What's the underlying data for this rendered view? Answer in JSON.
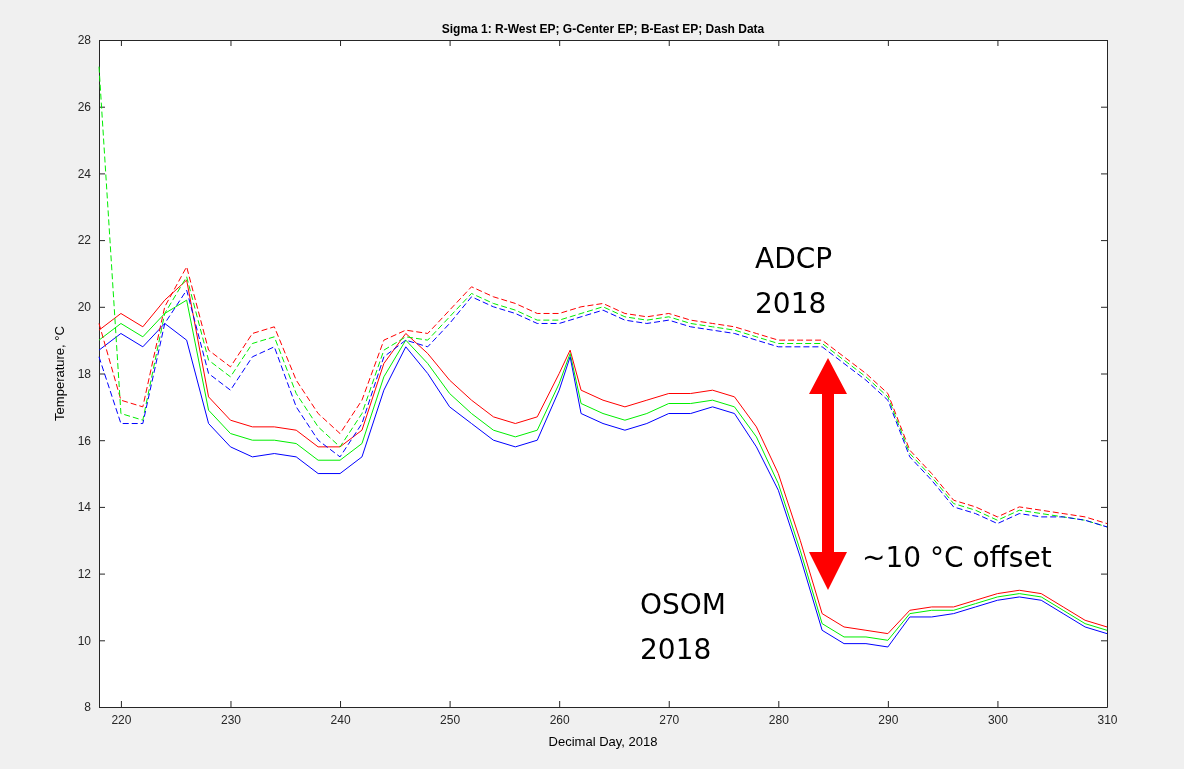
{
  "chart_data": {
    "type": "line",
    "title": "Sigma 1: R-West EP; G-Center EP; B-East EP; Dash Data",
    "xlabel": "Decimal Day, 2018",
    "ylabel": "Temperature, °C",
    "x": [
      218,
      220,
      222,
      224,
      226,
      228,
      230,
      232,
      234,
      236,
      238,
      240,
      242,
      244,
      246,
      248,
      250,
      252,
      254,
      256,
      258,
      260,
      261,
      262,
      264,
      266,
      268,
      270,
      272,
      274,
      276,
      278,
      280,
      282,
      284,
      286,
      288,
      290,
      292,
      294,
      296,
      298,
      300,
      302,
      304,
      306,
      308,
      310
    ],
    "xlim": [
      218,
      310
    ],
    "xticks": [
      220,
      230,
      240,
      250,
      260,
      270,
      280,
      290,
      300,
      310
    ],
    "ylim": [
      8,
      28
    ],
    "yticks": [
      8,
      10,
      12,
      14,
      16,
      18,
      20,
      22,
      24,
      26,
      28
    ],
    "grid": false,
    "series": [
      {
        "color": "#ff0000",
        "line_style": "solid",
        "values": [
          19.3,
          19.8,
          19.4,
          20.2,
          20.8,
          17.3,
          16.6,
          16.4,
          16.4,
          16.3,
          15.8,
          15.8,
          16.3,
          18.3,
          19.2,
          18.6,
          17.8,
          17.2,
          16.7,
          16.5,
          16.7,
          18.0,
          18.7,
          17.5,
          17.2,
          17.0,
          17.2,
          17.4,
          17.4,
          17.5,
          17.3,
          16.4,
          15.0,
          13.0,
          10.8,
          10.4,
          10.3,
          10.2,
          10.9,
          11.0,
          11.0,
          11.2,
          11.4,
          11.5,
          11.4,
          11.0,
          10.6,
          10.4
        ]
      },
      {
        "color": "#00ee00",
        "line_style": "solid",
        "values": [
          19.0,
          19.5,
          19.1,
          19.8,
          20.2,
          16.9,
          16.2,
          16.0,
          16.0,
          15.9,
          15.4,
          15.4,
          15.9,
          17.9,
          19.0,
          18.3,
          17.4,
          16.8,
          16.3,
          16.1,
          16.3,
          17.7,
          18.6,
          17.1,
          16.8,
          16.6,
          16.8,
          17.1,
          17.1,
          17.2,
          17.0,
          16.1,
          14.7,
          12.7,
          10.5,
          10.1,
          10.1,
          10.0,
          10.8,
          10.9,
          10.9,
          11.1,
          11.3,
          11.4,
          11.3,
          10.9,
          10.5,
          10.3
        ]
      },
      {
        "color": "#0000ff",
        "line_style": "solid",
        "values": [
          18.7,
          19.2,
          18.8,
          19.5,
          19.0,
          16.5,
          15.8,
          15.5,
          15.6,
          15.5,
          15.0,
          15.0,
          15.5,
          17.5,
          18.8,
          18.0,
          17.0,
          16.5,
          16.0,
          15.8,
          16.0,
          17.5,
          18.5,
          16.8,
          16.5,
          16.3,
          16.5,
          16.8,
          16.8,
          17.0,
          16.8,
          15.8,
          14.5,
          12.5,
          10.3,
          9.9,
          9.9,
          9.8,
          10.7,
          10.7,
          10.8,
          11.0,
          11.2,
          11.3,
          11.2,
          10.8,
          10.4,
          10.2
        ]
      },
      {
        "color": "#ff0000",
        "line_style": "dashed",
        "values": [
          19.5,
          17.2,
          17.0,
          20.0,
          21.2,
          18.7,
          18.2,
          19.2,
          19.4,
          17.8,
          16.8,
          16.2,
          17.2,
          19.0,
          19.3,
          19.2,
          19.9,
          20.6,
          20.3,
          20.1,
          19.8,
          19.8,
          19.9,
          20.0,
          20.1,
          19.8,
          19.7,
          19.8,
          19.6,
          19.5,
          19.4,
          19.2,
          19.0,
          19.0,
          19.0,
          18.5,
          18.0,
          17.4,
          15.7,
          15.0,
          14.2,
          14.0,
          13.7,
          14.0,
          13.9,
          13.8,
          13.7,
          13.5
        ]
      },
      {
        "color": "#00ee00",
        "line_style": "dashed",
        "values": [
          27.2,
          16.8,
          16.6,
          19.8,
          20.9,
          18.4,
          17.9,
          18.9,
          19.1,
          17.4,
          16.4,
          15.8,
          16.8,
          18.7,
          19.1,
          19.0,
          19.7,
          20.4,
          20.1,
          19.9,
          19.6,
          19.6,
          19.7,
          19.8,
          20.0,
          19.7,
          19.6,
          19.7,
          19.5,
          19.4,
          19.3,
          19.1,
          18.9,
          18.9,
          18.9,
          18.4,
          17.9,
          17.3,
          15.6,
          14.9,
          14.1,
          13.9,
          13.6,
          13.9,
          13.8,
          13.7,
          13.6,
          13.4
        ]
      },
      {
        "color": "#0000ff",
        "line_style": "dashed",
        "values": [
          18.5,
          16.5,
          16.5,
          19.5,
          20.5,
          18.0,
          17.5,
          18.5,
          18.8,
          17.0,
          16.0,
          15.5,
          16.5,
          18.5,
          19.0,
          18.8,
          19.5,
          20.3,
          20.0,
          19.8,
          19.5,
          19.5,
          19.6,
          19.7,
          19.9,
          19.6,
          19.5,
          19.6,
          19.4,
          19.3,
          19.2,
          19.0,
          18.8,
          18.8,
          18.8,
          18.3,
          17.8,
          17.2,
          15.5,
          14.8,
          14.0,
          13.8,
          13.5,
          13.8,
          13.7,
          13.7,
          13.6,
          13.4
        ]
      }
    ],
    "annotations": [
      "ADCP\n2018",
      "~10 °C offset",
      "OSOM\n2018"
    ]
  }
}
